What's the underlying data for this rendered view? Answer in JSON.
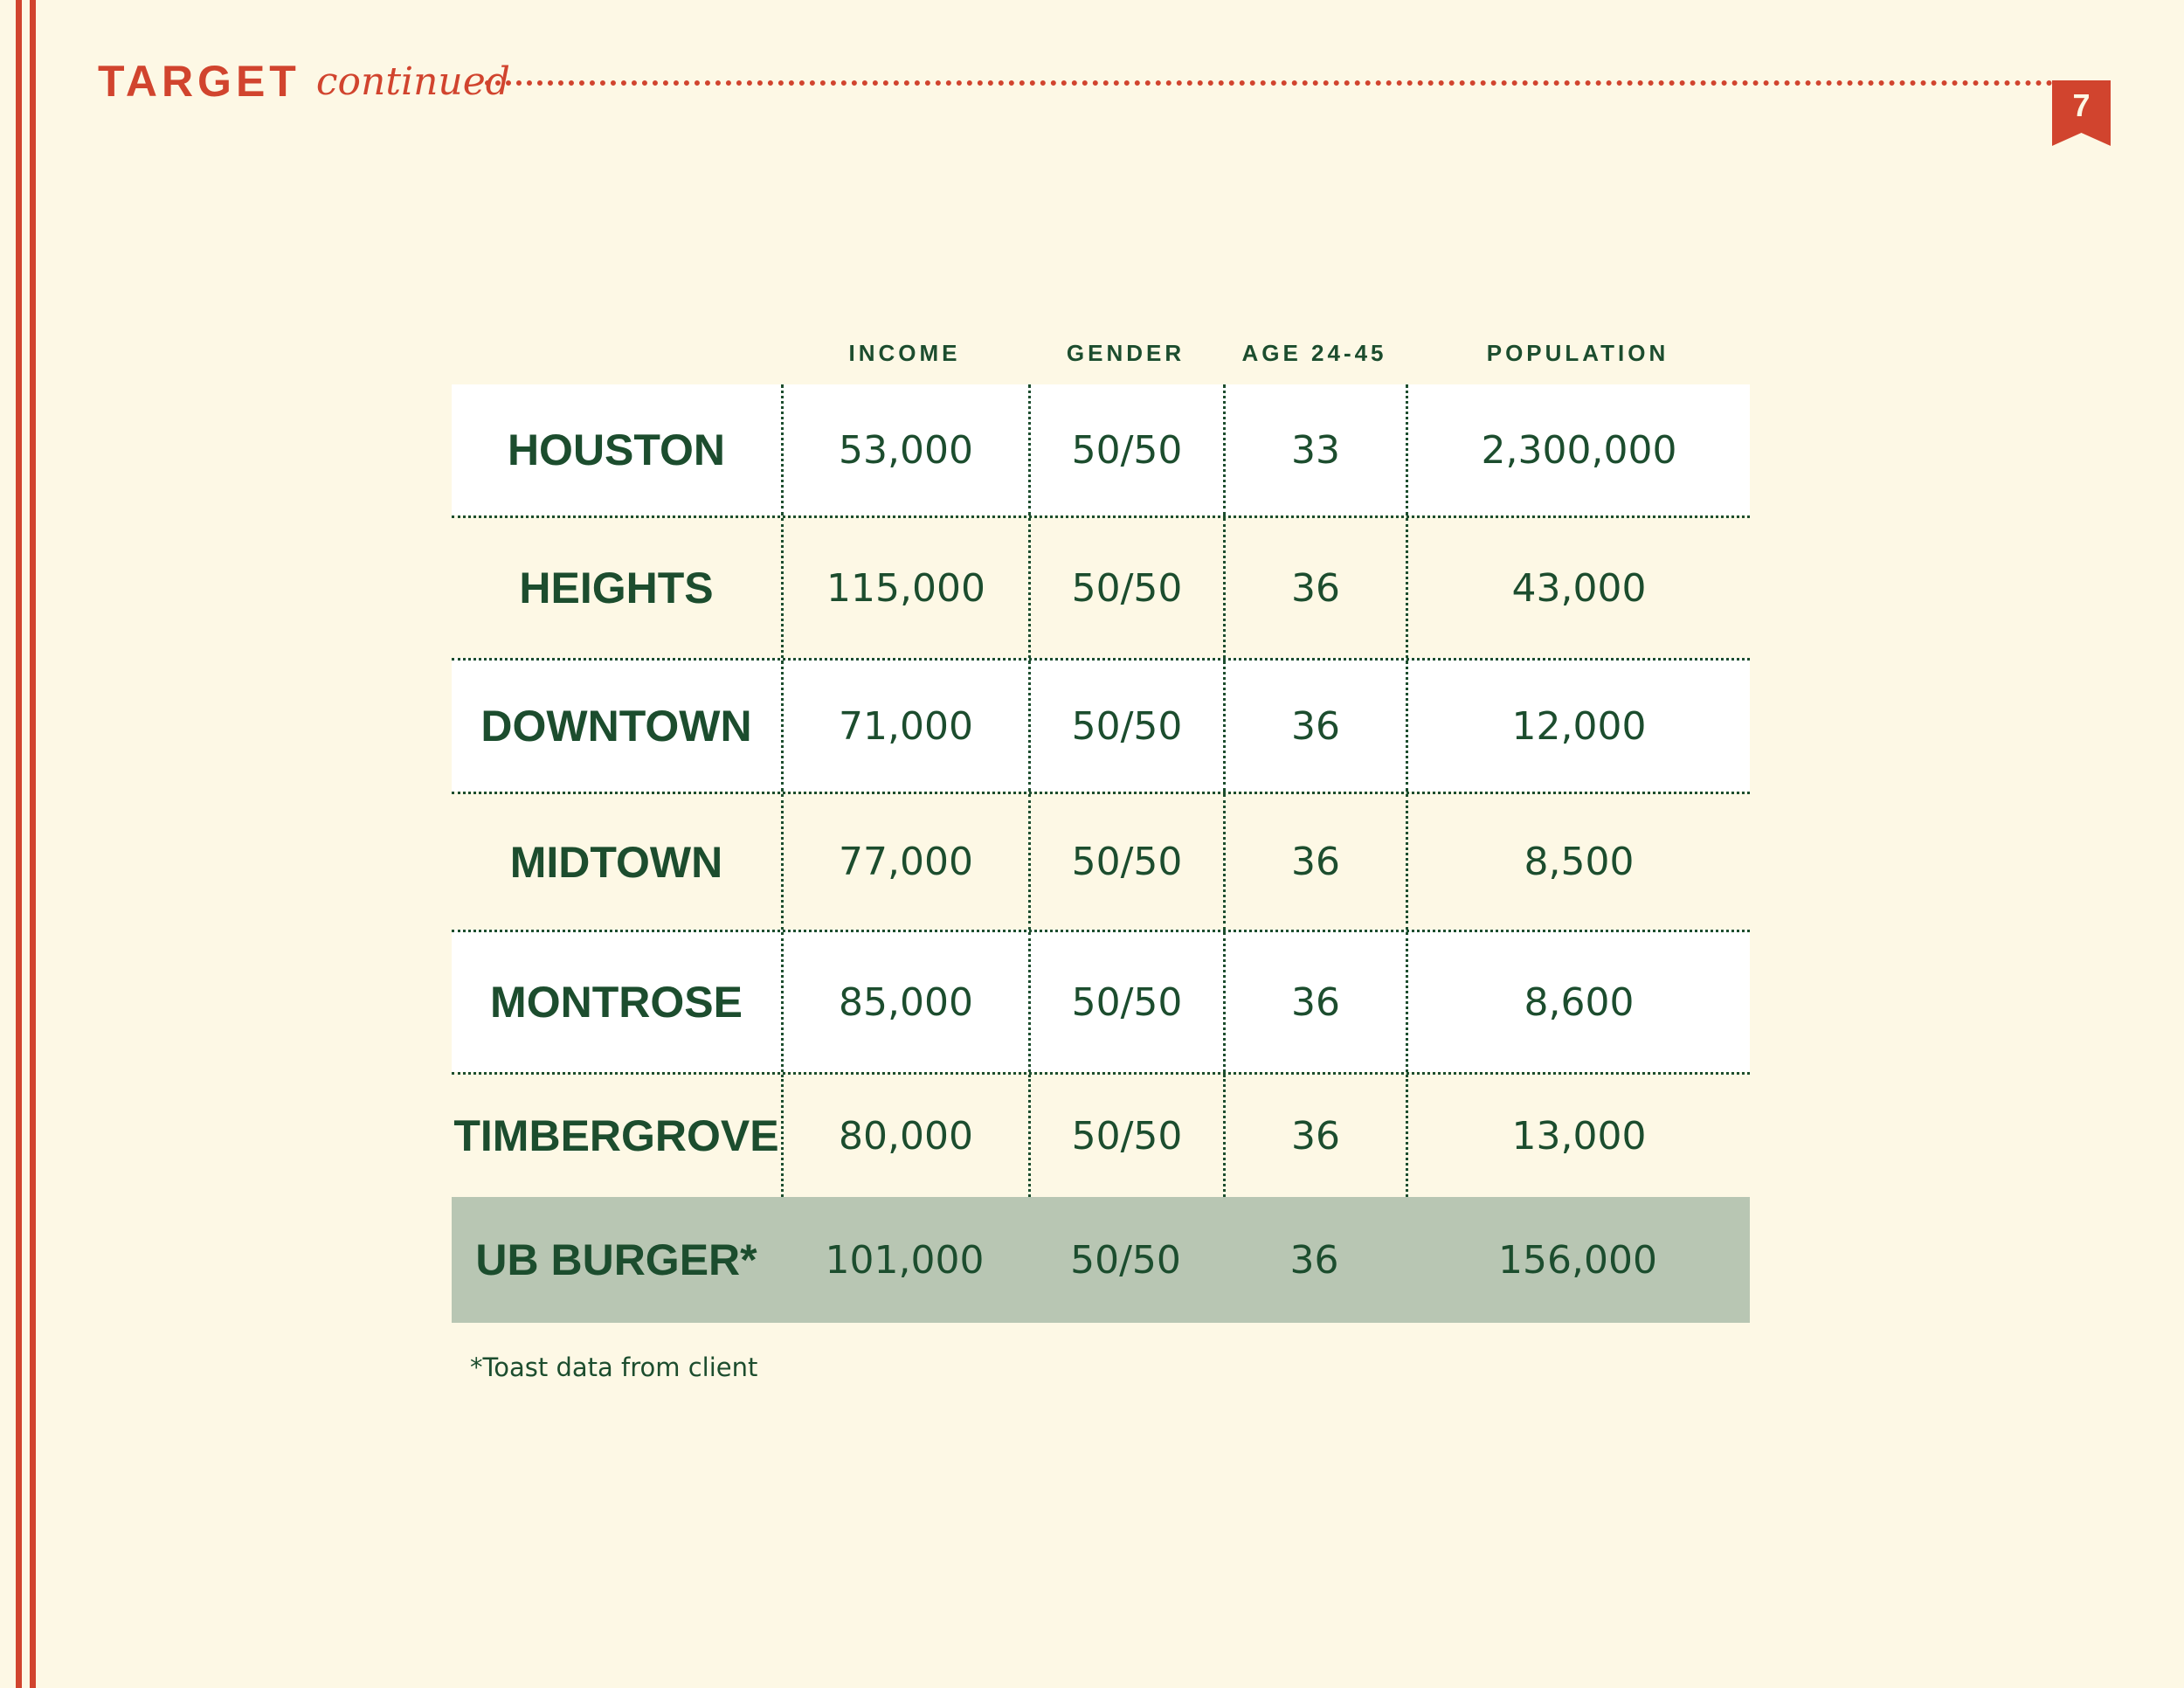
{
  "header": {
    "title": "TARGET",
    "subtitle": "continued",
    "page_number": "7"
  },
  "colors": {
    "accent": "#D1442E",
    "text": "#1C4D2E",
    "background": "#FDF8E5",
    "highlight_row": "#B8C6B3"
  },
  "table": {
    "columns": [
      "",
      "INCOME",
      "GENDER",
      "AGE 24-45",
      "POPULATION"
    ],
    "rows": [
      {
        "name": "HOUSTON",
        "income": "53,000",
        "gender": "50/50",
        "age": "33",
        "population": "2,300,000"
      },
      {
        "name": "HEIGHTS",
        "income": "115,000",
        "gender": "50/50",
        "age": "36",
        "population": "43,000"
      },
      {
        "name": "DOWNTOWN",
        "income": "71,000",
        "gender": "50/50",
        "age": "36",
        "population": "12,000"
      },
      {
        "name": "MIDTOWN",
        "income": "77,000",
        "gender": "50/50",
        "age": "36",
        "population": "8,500"
      },
      {
        "name": "MONTROSE",
        "income": "85,000",
        "gender": "50/50",
        "age": "36",
        "population": "8,600"
      },
      {
        "name": "TIMBERGROVE",
        "income": "80,000",
        "gender": "50/50",
        "age": "36",
        "population": "13,000"
      },
      {
        "name": "UB BURGER*",
        "income": "101,000",
        "gender": "50/50",
        "age": "36",
        "population": "156,000"
      }
    ]
  },
  "footnote": "*Toast data from client"
}
